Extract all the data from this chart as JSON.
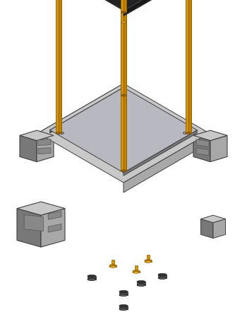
{
  "bg": "#ffffff",
  "GL": "#c8c8c8",
  "GM": "#a8a8a8",
  "GD": "#787878",
  "GDK": "#585858",
  "GOLD": "#d4920a",
  "GOLDD": "#8a5e00",
  "GOLDM": "#c08000",
  "GOLDT": "#e8b030",
  "BK": "#1e1e1e",
  "BKM": "#2e2e2e",
  "EC": "#404040",
  "figsize": [
    3.5,
    4.55
  ],
  "dpi": 100,
  "OX": 175,
  "OY": 160,
  "SC": 28
}
